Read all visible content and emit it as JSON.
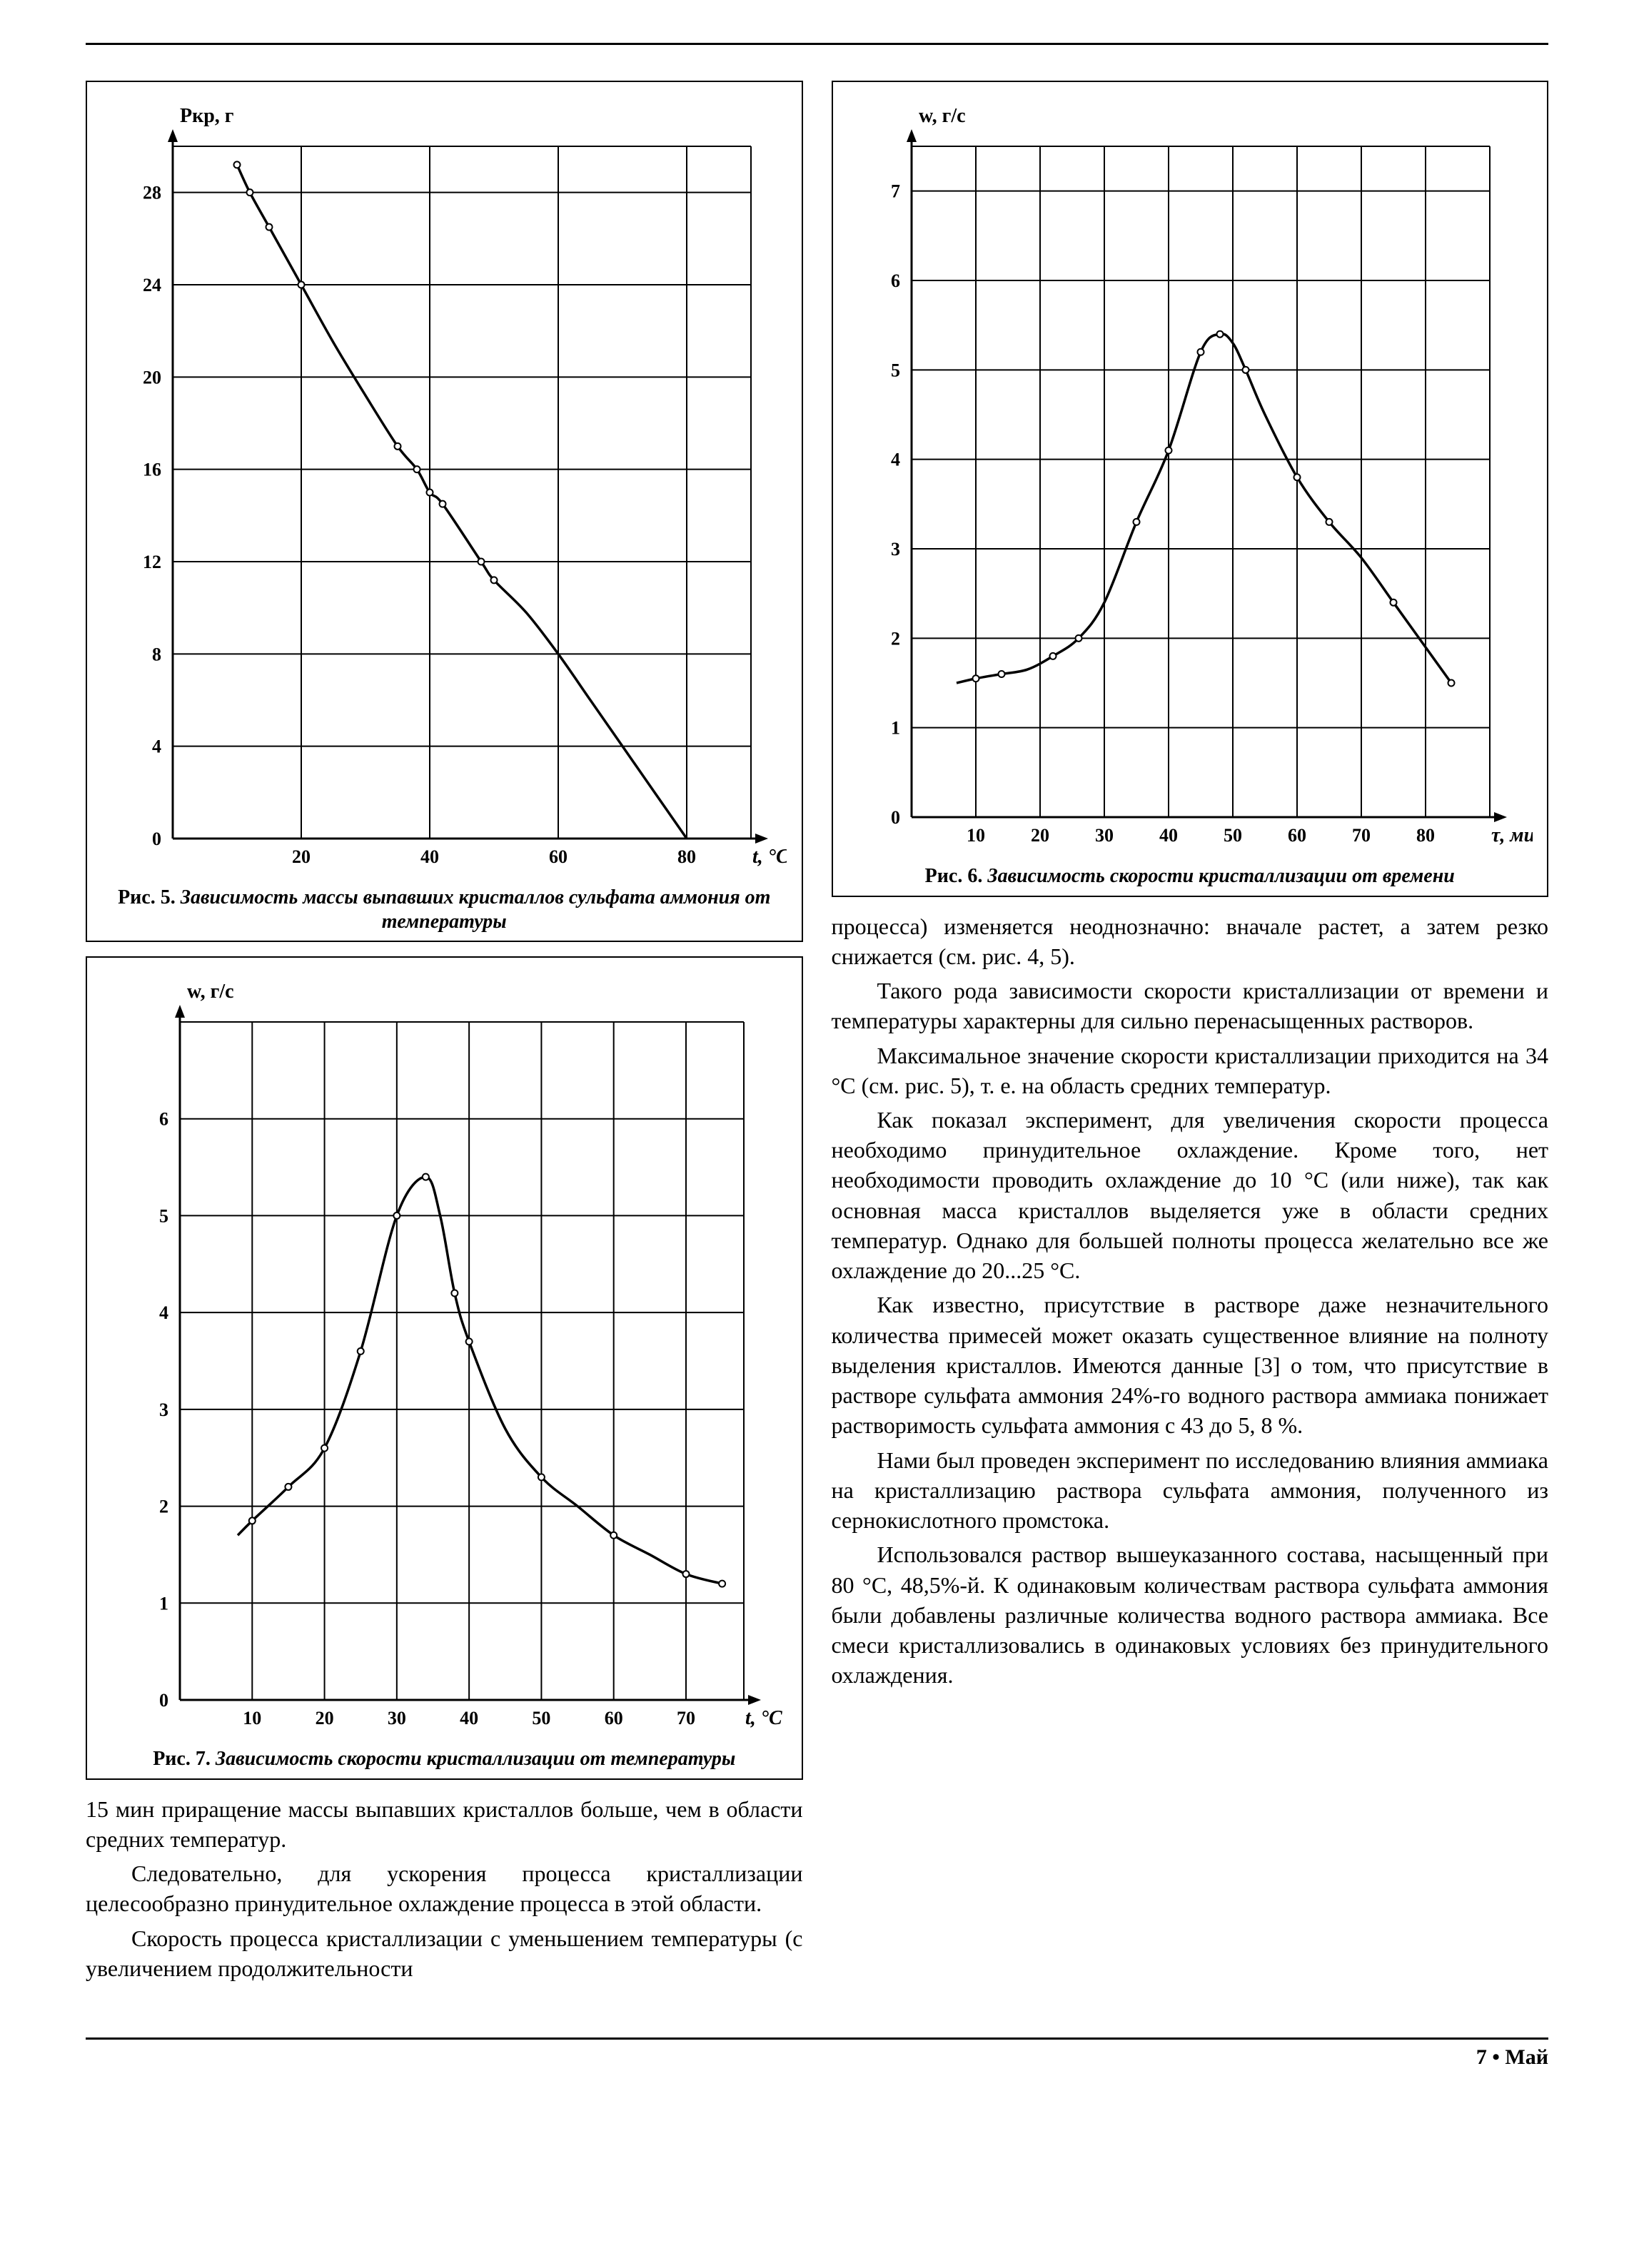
{
  "page": {
    "footer": "7 • Май"
  },
  "fig5": {
    "type": "line",
    "y_axis_label": "Pкр, г",
    "x_axis_label": "t, °C",
    "caption_prefix": "Рис. 5. ",
    "caption_ital": "Зависимость массы выпавших кристаллов сульфата аммония от температуры",
    "xlim": [
      0,
      90
    ],
    "ylim": [
      0,
      30
    ],
    "xticks": [
      20,
      40,
      60,
      80
    ],
    "yticks": [
      0,
      4,
      8,
      12,
      16,
      20,
      24,
      28
    ],
    "grid_color": "#000000",
    "background_color": "#ffffff",
    "line_color": "#000000",
    "line_width": 3.5,
    "marker": "circle-open",
    "marker_size": 9,
    "curve": [
      [
        10,
        29.2
      ],
      [
        12,
        28.0
      ],
      [
        15,
        26.5
      ],
      [
        20,
        24.0
      ],
      [
        25,
        21.5
      ],
      [
        30,
        19.2
      ],
      [
        35,
        17.0
      ],
      [
        38,
        16.0
      ],
      [
        40,
        15.0
      ],
      [
        42,
        14.5
      ],
      [
        48,
        12.0
      ],
      [
        50,
        11.2
      ],
      [
        55,
        9.8
      ],
      [
        60,
        8.0
      ],
      [
        65,
        6.0
      ],
      [
        70,
        4.0
      ],
      [
        75,
        2.0
      ],
      [
        80,
        0.0
      ]
    ],
    "markers": [
      [
        10,
        29.2
      ],
      [
        12,
        28.0
      ],
      [
        15,
        26.5
      ],
      [
        20,
        24.0
      ],
      [
        35,
        17.0
      ],
      [
        38,
        16.0
      ],
      [
        40,
        15.0
      ],
      [
        42,
        14.5
      ],
      [
        48,
        12.0
      ],
      [
        50,
        11.2
      ]
    ]
  },
  "fig6": {
    "type": "line",
    "y_axis_label": "w, г/с",
    "x_axis_label": "τ, мин",
    "caption_prefix": "Рис. 6. ",
    "caption_ital": "Зависимость скорости кристаллизации от времени",
    "xlim": [
      0,
      90
    ],
    "ylim": [
      0,
      7.5
    ],
    "xticks": [
      10,
      20,
      30,
      40,
      50,
      60,
      70,
      80
    ],
    "yticks": [
      0,
      1,
      2,
      3,
      4,
      5,
      6,
      7
    ],
    "grid_color": "#000000",
    "background_color": "#ffffff",
    "line_color": "#000000",
    "line_width": 3.5,
    "marker": "circle-open",
    "marker_size": 9,
    "curve": [
      [
        7,
        1.5
      ],
      [
        10,
        1.55
      ],
      [
        14,
        1.6
      ],
      [
        18,
        1.65
      ],
      [
        22,
        1.8
      ],
      [
        26,
        2.0
      ],
      [
        30,
        2.4
      ],
      [
        35,
        3.3
      ],
      [
        40,
        4.1
      ],
      [
        45,
        5.2
      ],
      [
        48,
        5.4
      ],
      [
        50,
        5.3
      ],
      [
        52,
        5.0
      ],
      [
        55,
        4.5
      ],
      [
        60,
        3.8
      ],
      [
        65,
        3.3
      ],
      [
        70,
        2.9
      ],
      [
        75,
        2.4
      ],
      [
        80,
        1.9
      ],
      [
        84,
        1.5
      ]
    ],
    "markers": [
      [
        10,
        1.55
      ],
      [
        14,
        1.6
      ],
      [
        22,
        1.8
      ],
      [
        26,
        2.0
      ],
      [
        35,
        3.3
      ],
      [
        40,
        4.1
      ],
      [
        45,
        5.2
      ],
      [
        48,
        5.4
      ],
      [
        52,
        5.0
      ],
      [
        60,
        3.8
      ],
      [
        65,
        3.3
      ],
      [
        75,
        2.4
      ],
      [
        84,
        1.5
      ]
    ]
  },
  "fig7": {
    "type": "line",
    "y_axis_label": "w, г/с",
    "x_axis_label": "t, °C",
    "caption_prefix": "Рис. 7. ",
    "caption_ital": "Зависимость скорости кристаллизации от температуры",
    "xlim": [
      0,
      78
    ],
    "ylim": [
      0,
      7
    ],
    "xticks": [
      10,
      20,
      30,
      40,
      50,
      60,
      70
    ],
    "yticks": [
      0,
      1,
      2,
      3,
      4,
      5,
      6
    ],
    "grid_color": "#000000",
    "background_color": "#ffffff",
    "line_color": "#000000",
    "line_width": 3.5,
    "marker": "circle-open",
    "marker_size": 9,
    "curve": [
      [
        8,
        1.7
      ],
      [
        10,
        1.85
      ],
      [
        15,
        2.2
      ],
      [
        20,
        2.6
      ],
      [
        25,
        3.6
      ],
      [
        30,
        5.0
      ],
      [
        34,
        5.4
      ],
      [
        36,
        5.0
      ],
      [
        38,
        4.2
      ],
      [
        40,
        3.7
      ],
      [
        45,
        2.8
      ],
      [
        50,
        2.3
      ],
      [
        55,
        2.0
      ],
      [
        60,
        1.7
      ],
      [
        65,
        1.5
      ],
      [
        70,
        1.3
      ],
      [
        75,
        1.2
      ]
    ],
    "markers": [
      [
        10,
        1.85
      ],
      [
        15,
        2.2
      ],
      [
        20,
        2.6
      ],
      [
        25,
        3.6
      ],
      [
        30,
        5.0
      ],
      [
        34,
        5.4
      ],
      [
        38,
        4.2
      ],
      [
        40,
        3.7
      ],
      [
        50,
        2.3
      ],
      [
        60,
        1.7
      ],
      [
        70,
        1.3
      ],
      [
        75,
        1.2
      ]
    ]
  },
  "text_left_1": "15 мин приращение массы выпавших кристаллов больше, чем в области средних температур.",
  "text_left_2": "Следовательно, для ускорения процесса кристаллизации целесообразно принудительное охлаждение процесса в этой области.",
  "text_left_3": "Скорость процесса кристаллизации с уменьшением температуры (с увеличением продолжительности",
  "text_right_1": "процесса) изменяется неоднозначно: вначале растет, а затем резко снижается (см. рис. 4, 5).",
  "text_right_2": "Такого рода зависимости скорости кристаллизации от  времени и температуры характерны для сильно перенасыщенных растворов.",
  "text_right_3": "Максимальное значение скорости кристаллизации приходится на 34 °С (см. рис. 5), т. е. на область средних температур.",
  "text_right_4": "Как показал эксперимент, для увеличения скорости процесса необходимо принудительное охлаждение. Кроме того, нет необходимости проводить охлаждение до 10 °С (или ниже), так как основная масса кристаллов выделяется уже в области средних температур. Однако для большей полноты процесса желательно все же охлаждение до 20...25 °С.",
  "text_right_5": "Как известно, присутствие в растворе даже незначительного количества примесей может оказать существенное влияние на полноту выделения кристаллов. Имеются данные [3] о том, что присутствие в растворе сульфата аммония 24%-го водного раствора аммиака понижает растворимость сульфата аммония с 43 до 5, 8 %.",
  "text_right_6": "Нами был проведен эксперимент по исследованию влияния аммиака на кристаллизацию раствора сульфата аммония, полученного из сернокислотного промстока.",
  "text_right_7": "Использовался раствор вышеуказанного состава, насыщенный при 80 °С, 48,5%-й. К одинаковым количествам раствора сульфата аммония были добавлены различные количества водного раствора аммиака. Все смеси кристаллизовались в одинаковых условиях без принудительного охлаждения."
}
